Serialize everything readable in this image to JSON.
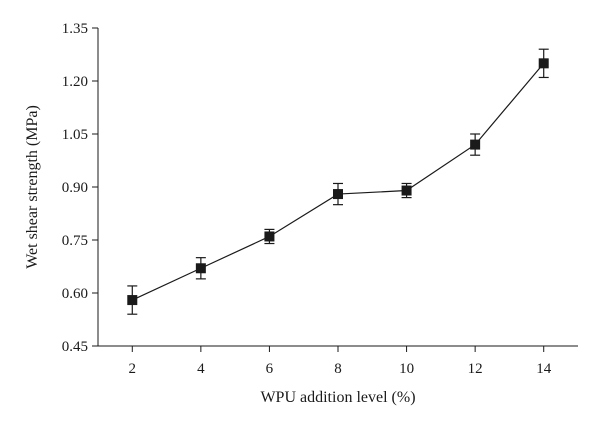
{
  "chart_data": {
    "type": "line",
    "title": "",
    "xlabel": "WPU addition level (%)",
    "ylabel": "Wet shear strength (MPa)",
    "x": [
      2,
      4,
      6,
      8,
      10,
      12,
      14
    ],
    "series": [
      {
        "values": [
          0.58,
          0.67,
          0.76,
          0.88,
          0.89,
          1.02,
          1.25
        ],
        "error": [
          0.04,
          0.03,
          0.02,
          0.03,
          0.02,
          0.03,
          0.04
        ],
        "marker": "square",
        "color": "#1a1a1a"
      }
    ],
    "xlim": [
      1,
      15
    ],
    "ylim": [
      0.45,
      1.35
    ],
    "xticks": [
      "2",
      "4",
      "6",
      "8",
      "10",
      "12",
      "14"
    ],
    "yticks": [
      "0.45",
      "0.60",
      "0.75",
      "0.90",
      "1.05",
      "1.20",
      "1.35"
    ],
    "grid": false,
    "legend": "none"
  }
}
